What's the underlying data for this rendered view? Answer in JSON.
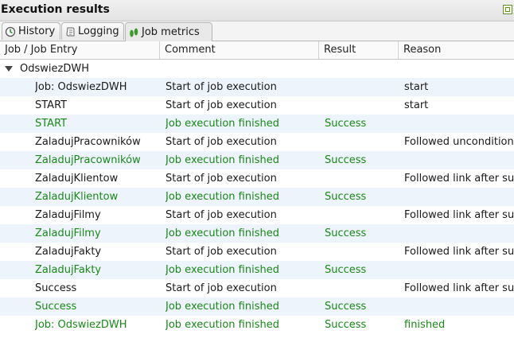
{
  "panel": {
    "title": "Execution results"
  },
  "tabs": [
    {
      "label": "History",
      "icon": "history-icon"
    },
    {
      "label": "Logging",
      "icon": "logging-icon"
    },
    {
      "label": "Job metrics",
      "icon": "job-metrics-icon"
    }
  ],
  "columns": [
    "Job / Job Entry",
    "Comment",
    "Result",
    "Reason"
  ],
  "tree_root": "OdswiezDWH",
  "colors": {
    "success": "#178a17",
    "row_alt": "#eef4fb"
  },
  "rows": [
    {
      "entry": "Job: OdswiezDWH",
      "comment": "Start of job execution",
      "result": "",
      "reason": "start",
      "finished": false
    },
    {
      "entry": "START",
      "comment": "Start of job execution",
      "result": "",
      "reason": "start",
      "finished": false
    },
    {
      "entry": "START",
      "comment": "Job execution finished",
      "result": "Success",
      "reason": "",
      "finished": true
    },
    {
      "entry": "ZaladujPracowników",
      "comment": "Start of job execution",
      "result": "",
      "reason": "Followed unconditional",
      "finished": false
    },
    {
      "entry": "ZaladujPracowników",
      "comment": "Job execution finished",
      "result": "Success",
      "reason": "",
      "finished": true
    },
    {
      "entry": "ZaladujKlientow",
      "comment": "Start of job execution",
      "result": "",
      "reason": "Followed link after su",
      "finished": false
    },
    {
      "entry": "ZaladujKlientow",
      "comment": "Job execution finished",
      "result": "Success",
      "reason": "",
      "finished": true
    },
    {
      "entry": "ZaladujFilmy",
      "comment": "Start of job execution",
      "result": "",
      "reason": "Followed link after su",
      "finished": false
    },
    {
      "entry": "ZaladujFilmy",
      "comment": "Job execution finished",
      "result": "Success",
      "reason": "",
      "finished": true
    },
    {
      "entry": "ZaladujFakty",
      "comment": "Start of job execution",
      "result": "",
      "reason": "Followed link after su",
      "finished": false
    },
    {
      "entry": "ZaladujFakty",
      "comment": "Job execution finished",
      "result": "Success",
      "reason": "",
      "finished": true
    },
    {
      "entry": "Success",
      "comment": "Start of job execution",
      "result": "",
      "reason": "Followed link after su",
      "finished": false
    },
    {
      "entry": "Success",
      "comment": "Job execution finished",
      "result": "Success",
      "reason": "",
      "finished": true
    },
    {
      "entry": "Job: OdswiezDWH",
      "comment": "Job execution finished",
      "result": "Success",
      "reason": "finished",
      "finished": true
    }
  ]
}
